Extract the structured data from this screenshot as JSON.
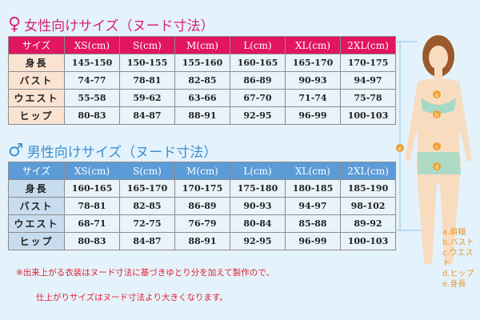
{
  "women": {
    "title": "女性向けサイズ（ヌード寸法）",
    "icon": "female-symbol-icon",
    "header": [
      "サイズ",
      "XS(cm)",
      "S(cm)",
      "M(cm)",
      "L(cm)",
      "XL(cm)",
      "2XL(cm)"
    ],
    "rows": [
      [
        "身長",
        "145-150",
        "150-155",
        "155-160",
        "160-165",
        "165-170",
        "170-175"
      ],
      [
        "バスト",
        "74-77",
        "78-81",
        "82-85",
        "86-89",
        "90-93",
        "94-97"
      ],
      [
        "ウエスト",
        "55-58",
        "59-62",
        "63-66",
        "67-70",
        "71-74",
        "75-78"
      ],
      [
        "ヒップ",
        "80-83",
        "84-87",
        "88-91",
        "92-95",
        "96-99",
        "100-103"
      ]
    ]
  },
  "men": {
    "title": "男性向けサイズ（ヌード寸法）",
    "icon": "male-symbol-icon",
    "header": [
      "サイズ",
      "XS(cm)",
      "S(cm)",
      "M(cm)",
      "L(cm)",
      "XL(cm)",
      "2XL(cm)"
    ],
    "rows": [
      [
        "身長",
        "160-165",
        "165-170",
        "170-175",
        "175-180",
        "180-185",
        "185-190"
      ],
      [
        "バスト",
        "78-81",
        "82-85",
        "86-89",
        "90-93",
        "94-97",
        "98-102"
      ],
      [
        "ウエスト",
        "68-71",
        "72-75",
        "76-79",
        "80-84",
        "85-88",
        "89-92"
      ],
      [
        "ヒップ",
        "80-83",
        "84-87",
        "88-91",
        "92-95",
        "96-99",
        "100-103"
      ]
    ]
  },
  "notes": [
    "※出来上がる衣装はヌード寸法に基づきゆとり分を加えて製作ので、",
    "仕上がりサイズはヌード寸法より大きくなります。"
  ],
  "legend": [
    "a.肩幅",
    "b.バスト",
    "c.ウエスト",
    "d.ヒップ",
    "e.身長"
  ],
  "markers": [
    "a",
    "b",
    "c",
    "d",
    "e"
  ],
  "colors": {
    "women": "#e2155f",
    "men": "#5b9bd8",
    "note": "#e02030",
    "legend": "#e8962a"
  }
}
